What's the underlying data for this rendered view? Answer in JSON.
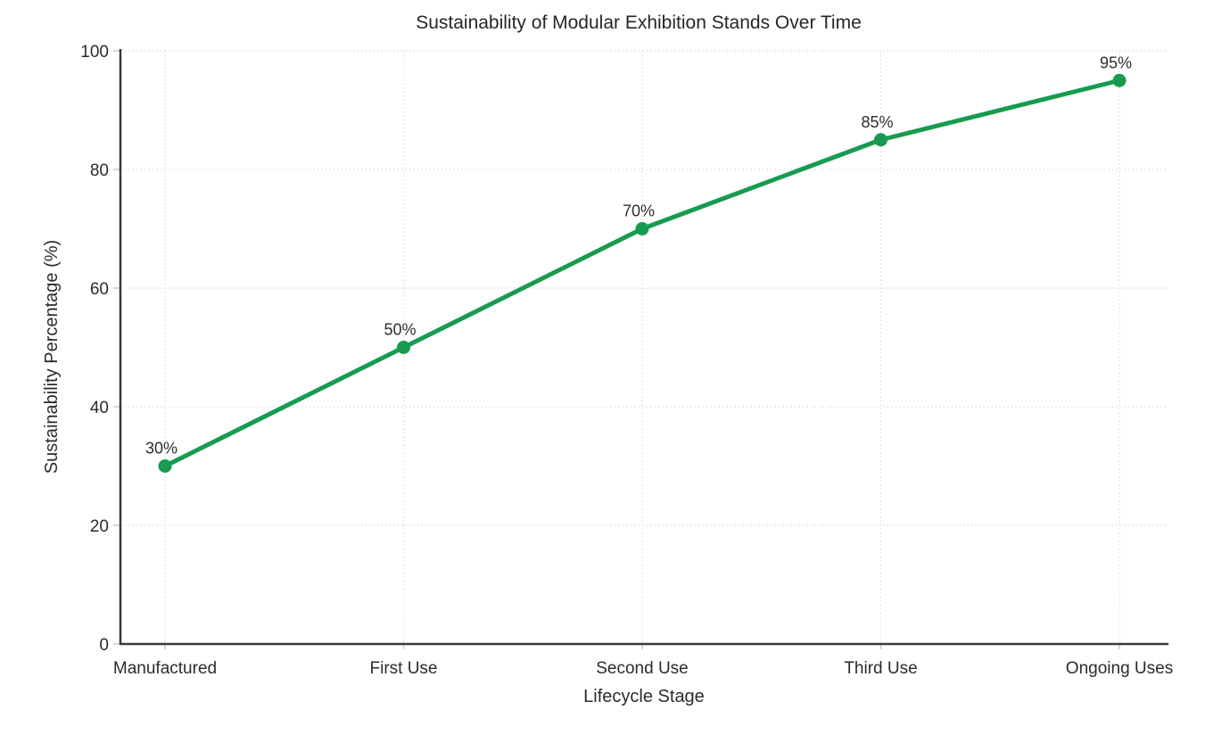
{
  "chart_data": {
    "type": "line",
    "title": "Sustainability of Modular Exhibition Stands Over Time",
    "xlabel": "Lifecycle Stage",
    "ylabel": "Sustainability Percentage (%)",
    "categories": [
      "Manufactured",
      "First Use",
      "Second Use",
      "Third Use",
      "Ongoing Uses"
    ],
    "series": [
      {
        "name": "Sustainability Percentage",
        "values": [
          30,
          50,
          70,
          85,
          95
        ],
        "point_labels": [
          "30%",
          "50%",
          "70%",
          "85%",
          "95%"
        ],
        "color": "#179b50"
      }
    ],
    "ylim": [
      0,
      100
    ],
    "yticks": [
      0,
      20,
      40,
      60,
      80,
      100
    ],
    "grid": true,
    "grid_style": "dotted",
    "legend": "none",
    "colors": {
      "line": "#179b50",
      "marker": "#179b50",
      "gridline": "#d9d9d9",
      "spine": "#3a3a3a",
      "text": "#2b2b2b",
      "background": "#ffffff"
    }
  }
}
